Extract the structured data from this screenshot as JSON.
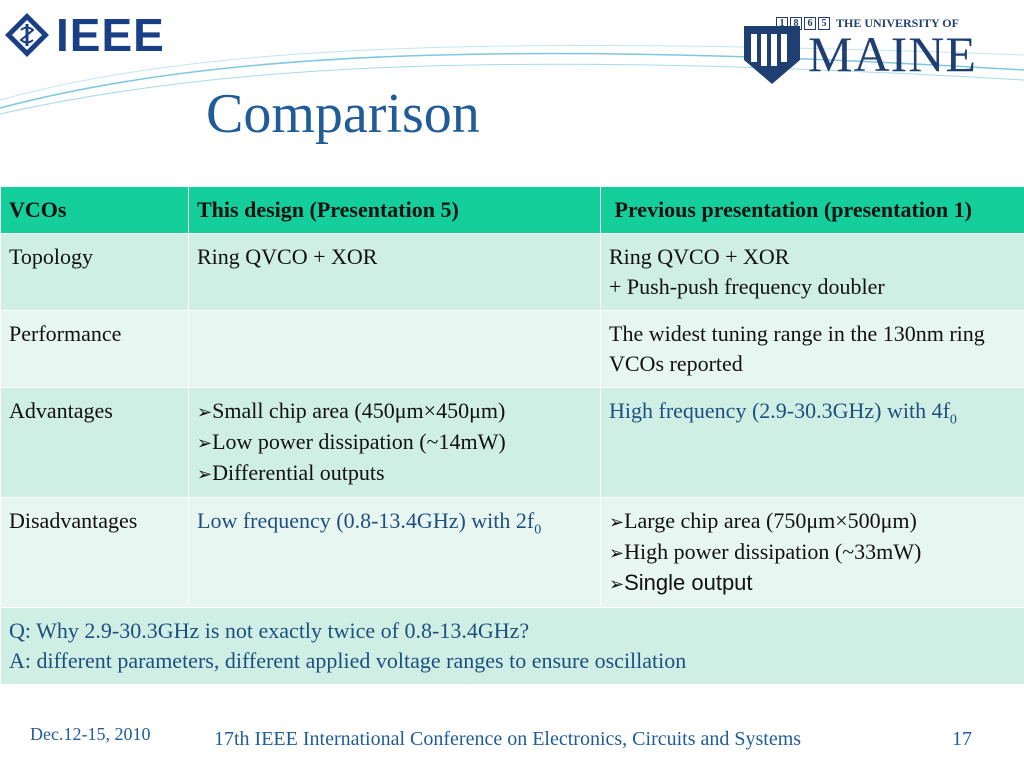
{
  "header": {
    "ieee_logo_text": "IEEE",
    "university_top": "THE UNIVERSITY OF",
    "university_year": [
      "1",
      "8",
      "6",
      "5"
    ],
    "university_name": "MAINE"
  },
  "title": "Comparison",
  "table": {
    "headers": [
      "VCOs",
      "This design (Presentation 5)",
      " Previous presentation (presentation 1)"
    ],
    "rows": [
      {
        "label": "Topology",
        "this": [
          "Ring QVCO + XOR"
        ],
        "prev": [
          "Ring QVCO + XOR",
          "+ Push-push frequency doubler"
        ]
      },
      {
        "label": "Performance",
        "this": [],
        "prev": [
          "The widest tuning range in the 130nm ring VCOs reported"
        ]
      },
      {
        "label": "Advantages",
        "this": [
          "Small chip area (450μm×450μm)",
          "Low power dissipation (~14mW)",
          "Differential outputs"
        ],
        "prev_main": "High frequency (2.9-30.3GHz) with 4f",
        "prev_sub": "0"
      },
      {
        "label": "Disadvantages",
        "this_main": "Low  frequency (0.8-13.4GHz) with 2f",
        "this_sub": "0",
        "prev": [
          "Large chip area (750μm×500μm)",
          "High power dissipation (~33mW)",
          "Single output"
        ]
      }
    ],
    "qa": [
      "Q: Why 2.9-30.3GHz is not exactly twice of 0.8-13.4GHz?",
      "A:  different parameters, different applied voltage ranges to ensure oscillation"
    ]
  },
  "footer": {
    "date": "Dec.12-15, 2010",
    "conference": "17th IEEE International Conference on Electronics, Circuits and Systems",
    "page": "17"
  },
  "colors": {
    "header_row": "#14cf9b",
    "row_dark": "#cfeee4",
    "row_light": "#e7f6f1",
    "title": "#1f5c99"
  },
  "icons": {
    "bullet": "arrow-bullet-icon",
    "ieee": "ieee-diamond-icon",
    "maine": "maine-shield-icon"
  }
}
